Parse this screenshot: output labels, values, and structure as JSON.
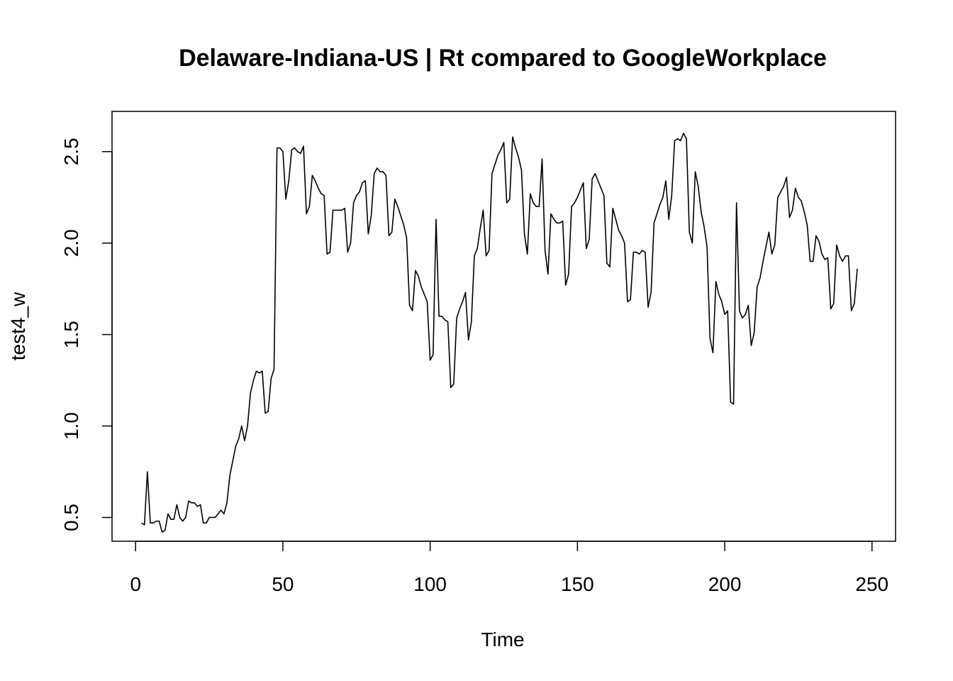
{
  "chart_data": {
    "type": "line",
    "title": "Delaware-Indiana-US | Rt compared to GoogleWorkplace",
    "xlabel": "Time",
    "ylabel": "test4_w",
    "xlim": [
      -8,
      258
    ],
    "ylim": [
      0.37,
      2.72
    ],
    "x_ticks": [
      0,
      50,
      100,
      150,
      200,
      250
    ],
    "y_ticks": [
      0.5,
      1.0,
      1.5,
      2.0,
      2.5
    ],
    "x_tick_labels": [
      "0",
      "50",
      "100",
      "150",
      "200",
      "250"
    ],
    "y_tick_labels": [
      "0.5",
      "1.0",
      "1.5",
      "2.0",
      "2.5"
    ],
    "grid": false,
    "line_color": "#000000",
    "series": [
      {
        "x_start": 2,
        "x_step": 1,
        "values": [
          0.47,
          0.46,
          0.75,
          0.47,
          0.47,
          0.48,
          0.48,
          0.42,
          0.43,
          0.52,
          0.49,
          0.49,
          0.57,
          0.5,
          0.48,
          0.5,
          0.59,
          0.58,
          0.58,
          0.56,
          0.57,
          0.47,
          0.47,
          0.5,
          0.5,
          0.5,
          0.52,
          0.54,
          0.52,
          0.58,
          0.73,
          0.81,
          0.89,
          0.93,
          1.0,
          0.92,
          1.0,
          1.18,
          1.25,
          1.3,
          1.29,
          1.3,
          1.07,
          1.08,
          1.26,
          1.31,
          2.52,
          2.52,
          2.5,
          2.24,
          2.34,
          2.51,
          2.52,
          2.5,
          2.49,
          2.53,
          2.16,
          2.2,
          2.37,
          2.34,
          2.3,
          2.27,
          2.26,
          1.94,
          1.95,
          2.18,
          2.18,
          2.18,
          2.18,
          2.19,
          1.95,
          2.0,
          2.22,
          2.26,
          2.28,
          2.33,
          2.34,
          2.05,
          2.15,
          2.38,
          2.41,
          2.39,
          2.39,
          2.37,
          2.04,
          2.06,
          2.24,
          2.2,
          2.15,
          2.1,
          2.03,
          1.66,
          1.63,
          1.85,
          1.82,
          1.76,
          1.72,
          1.68,
          1.36,
          1.39,
          2.13,
          1.6,
          1.6,
          1.58,
          1.57,
          1.21,
          1.23,
          1.59,
          1.64,
          1.68,
          1.73,
          1.47,
          1.57,
          1.93,
          1.97,
          2.08,
          2.18,
          1.93,
          1.96,
          2.38,
          2.43,
          2.48,
          2.51,
          2.55,
          2.22,
          2.24,
          2.58,
          2.52,
          2.47,
          2.4,
          2.05,
          1.94,
          2.27,
          2.22,
          2.2,
          2.2,
          2.46,
          1.96,
          1.83,
          2.16,
          2.13,
          2.11,
          2.11,
          2.12,
          1.77,
          1.83,
          2.2,
          2.22,
          2.25,
          2.29,
          2.33,
          1.97,
          2.02,
          2.35,
          2.38,
          2.34,
          2.3,
          2.26,
          1.89,
          1.87,
          2.19,
          2.13,
          2.07,
          2.04,
          2.0,
          1.68,
          1.69,
          1.95,
          1.95,
          1.94,
          1.96,
          1.95,
          1.65,
          1.73,
          2.11,
          2.16,
          2.21,
          2.25,
          2.34,
          2.13,
          2.26,
          2.56,
          2.57,
          2.56,
          2.6,
          2.57,
          2.06,
          2.0,
          2.39,
          2.31,
          2.17,
          2.09,
          1.98,
          1.48,
          1.4,
          1.79,
          1.72,
          1.68,
          1.61,
          1.63,
          1.13,
          1.12,
          2.22,
          1.63,
          1.59,
          1.61,
          1.66,
          1.44,
          1.51,
          1.76,
          1.81,
          1.9,
          1.98,
          2.06,
          1.94,
          1.99,
          2.25,
          2.28,
          2.31,
          2.36,
          2.14,
          2.18,
          2.3,
          2.25,
          2.23,
          2.17,
          2.1,
          1.9,
          1.9,
          2.04,
          2.01,
          1.94,
          1.91,
          1.92,
          1.64,
          1.67,
          1.99,
          1.93,
          1.9,
          1.93,
          1.93,
          1.63,
          1.67,
          1.86
        ]
      }
    ]
  }
}
